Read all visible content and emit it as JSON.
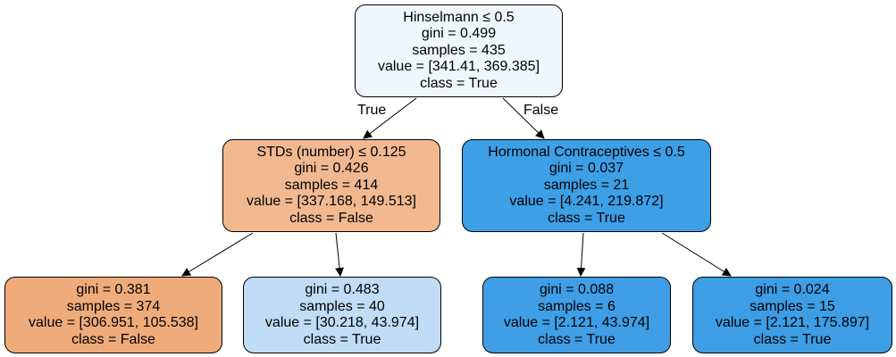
{
  "colors": {
    "root": "#eff6fd",
    "left_split": "#f2b991",
    "right_split": "#3d9fe6",
    "leaf_left_left": "#efab7a",
    "leaf_left_right": "#c0dcf6",
    "leaf_right_left": "#3f9ee6",
    "leaf_right_right": "#3d9de5",
    "edge": "#000000"
  },
  "edge_labels": {
    "true": "True",
    "false": "False"
  },
  "nodes": {
    "root": {
      "condition": "Hinselmann ≤ 0.5",
      "gini": "gini = 0.499",
      "samples": "samples = 435",
      "value": "value = [341.41, 369.385]",
      "class": "class = True"
    },
    "left": {
      "condition": "STDs (number) ≤ 0.125",
      "gini": "gini = 0.426",
      "samples": "samples = 414",
      "value": "value = [337.168, 149.513]",
      "class": "class = False"
    },
    "right": {
      "condition": "Hormonal Contraceptives ≤ 0.5",
      "gini": "gini = 0.037",
      "samples": "samples = 21",
      "value": "value = [4.241, 219.872]",
      "class": "class = True"
    },
    "left_left": {
      "gini": "gini = 0.381",
      "samples": "samples = 374",
      "value": "value = [306.951, 105.538]",
      "class": "class = False"
    },
    "left_right": {
      "gini": "gini = 0.483",
      "samples": "samples = 40",
      "value": "value = [30.218, 43.974]",
      "class": "class = True"
    },
    "right_left": {
      "gini": "gini = 0.088",
      "samples": "samples = 6",
      "value": "value = [2.121, 43.974]",
      "class": "class = True"
    },
    "right_right": {
      "gini": "gini = 0.024",
      "samples": "samples = 15",
      "value": "value = [2.121, 175.897]",
      "class": "class = True"
    }
  }
}
